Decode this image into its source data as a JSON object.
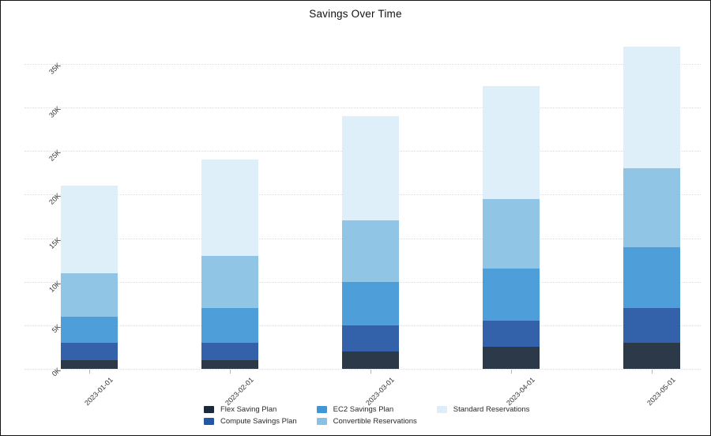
{
  "chart_data": {
    "type": "bar",
    "stacked": true,
    "title": "Savings Over Time",
    "categories": [
      "2023-01-01",
      "2023-02-01",
      "2023-03-01",
      "2023-04-01",
      "2023-05-01"
    ],
    "series": [
      {
        "name": "Flex Saving Plan",
        "color": "#1b2a3b",
        "values": [
          1000,
          1000,
          2000,
          2500,
          3000
        ]
      },
      {
        "name": "Compute Savings Plan",
        "color": "#2356a5",
        "values": [
          2000,
          2000,
          3000,
          3000,
          4000
        ]
      },
      {
        "name": "EC2 Savings Plan",
        "color": "#3f97d6",
        "values": [
          3000,
          4000,
          5000,
          6000,
          7000
        ]
      },
      {
        "name": "Convertible Reservations",
        "color": "#89c1e4",
        "values": [
          5000,
          6000,
          7000,
          8000,
          9000
        ]
      },
      {
        "name": "Standard Reservations",
        "color": "#ddeefa",
        "values": [
          10000,
          11000,
          12000,
          13000,
          14000
        ]
      }
    ],
    "totals": [
      21000,
      24000,
      29000,
      32500,
      37000
    ],
    "xlabel": "",
    "ylabel": "",
    "ylim": [
      0,
      38500
    ],
    "ytick_labels": [
      "0K",
      "5K",
      "10K",
      "15K",
      "20K",
      "25K",
      "30K",
      "35K"
    ],
    "ytick_step": 5000,
    "grid": true,
    "gridline_style": "dotted",
    "legend_position": "bottom",
    "legend_columns": [
      [
        "Flex Saving Plan",
        "Compute Savings Plan"
      ],
      [
        "EC2 Savings Plan",
        "Convertible Reservations"
      ],
      [
        "Standard Reservations"
      ]
    ],
    "background": "#ffffff"
  }
}
